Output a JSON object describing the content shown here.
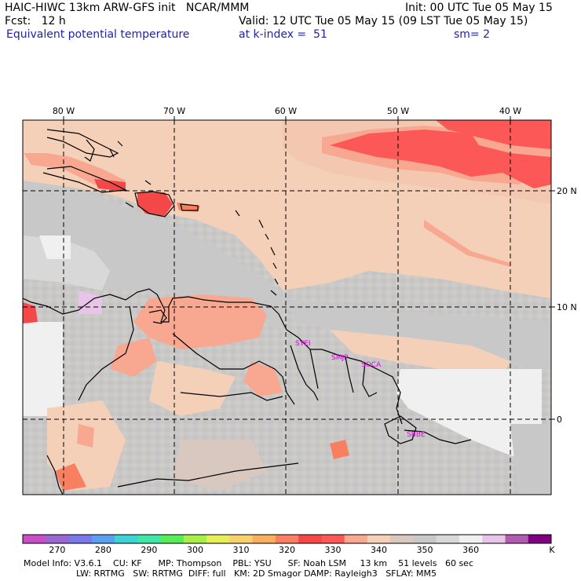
{
  "header": {
    "line1_left": "HAIC-HIWC 13km ARW-GFS init   NCAR/MMM",
    "line1_right": "Init: 00 UTC Tue 05 May 15",
    "fcst": "Fcst:   12 h",
    "valid": "Valid: 12 UTC Tue 05 May 15 (09 LST Tue 05 May 15)",
    "field": "Equivalent potential temperature",
    "level": "at k-index =  51",
    "smooth": "sm= 2"
  },
  "map": {
    "lon_labels": [
      "80 W",
      "70 W",
      "60 W",
      "50 W",
      "40 W"
    ],
    "lat_labels": [
      "20 N",
      "10 N",
      "0"
    ],
    "stations": [
      "SYEI",
      "SMJP",
      "SOCA",
      "SBBE"
    ]
  },
  "colorbar": {
    "colors": [
      "#c84fc8",
      "#9a68d0",
      "#7b78e8",
      "#5ba0f0",
      "#3fd2d2",
      "#3ee6a8",
      "#58ec58",
      "#a8ee48",
      "#e6ee58",
      "#f8d070",
      "#f8b060",
      "#f88060",
      "#f44848",
      "#fc5858",
      "#f8a890",
      "#f4d0b8",
      "#d8c8c0",
      "#c8c8c8",
      "#d8d8d8",
      "#f0f0f0",
      "#e8c4e8",
      "#b05cb0",
      "#800080"
    ],
    "labels": [
      "270",
      "280",
      "290",
      "300",
      "310",
      "320",
      "330",
      "340",
      "350",
      "360"
    ],
    "unit": "K"
  },
  "footer": {
    "line1": "Model Info: V3.6.1    CU: KF      MP: Thompson    PBL: YSU      SF: Noah LSM     13 km    51 levels   60 sec",
    "line2": "LW: RRTMG   SW: RRTMG  DIFF: full   KM: 2D Smagor DAMP: Rayleigh3   SFLAY: MM5"
  }
}
